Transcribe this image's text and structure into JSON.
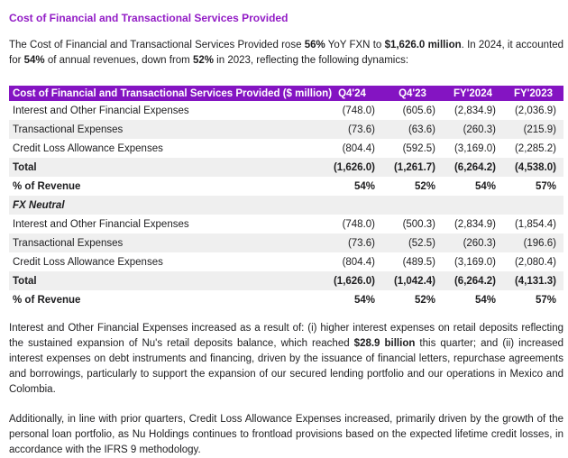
{
  "doc": {
    "title": "Cost of Financial and Transactional Services Provided",
    "intro": [
      {
        "text": "The Cost of Financial and Transactional Services Provided rose ",
        "bold": false
      },
      {
        "text": "56%",
        "bold": true
      },
      {
        "text": " YoY FXN to ",
        "bold": false
      },
      {
        "text": "$1,626.0 million",
        "bold": true
      },
      {
        "text": ". In 2024, it accounted for ",
        "bold": false
      },
      {
        "text": "54%",
        "bold": true
      },
      {
        "text": " of annual revenues, down from ",
        "bold": false
      },
      {
        "text": "52%",
        "bold": true
      },
      {
        "text": " in 2023, reflecting the following dynamics:",
        "bold": false
      }
    ]
  },
  "table": {
    "header": [
      "Cost of Financial and Transactional Services Provided ($ million)",
      "Q4'24",
      "Q4'23",
      "FY'2024",
      "FY'2023"
    ],
    "rows": [
      {
        "label": "Interest and Other Financial Expenses",
        "values": [
          "(748.0)",
          "(605.6)",
          "(2,834.9)",
          "(2,036.9)"
        ]
      },
      {
        "label": "Transactional Expenses",
        "values": [
          "(73.6)",
          "(63.6)",
          "(260.3)",
          "(215.9)"
        ]
      },
      {
        "label": "Credit Loss Allowance Expenses",
        "values": [
          "(804.4)",
          "(592.5)",
          "(3,169.0)",
          "(2,285.2)"
        ]
      },
      {
        "label": "Total",
        "values": [
          "(1,626.0)",
          "(1,261.7)",
          "(6,264.2)",
          "(4,538.0)"
        ]
      },
      {
        "label": "% of Revenue",
        "values": [
          "54%",
          "52%",
          "54%",
          "57%"
        ]
      },
      {
        "label": "FX Neutral",
        "values": []
      },
      {
        "label": "Interest and Other Financial Expenses",
        "values": [
          "(748.0)",
          "(500.3)",
          "(2,834.9)",
          "(1,854.4)"
        ]
      },
      {
        "label": "Transactional Expenses",
        "values": [
          "(73.6)",
          "(52.5)",
          "(260.3)",
          "(196.6)"
        ]
      },
      {
        "label": "Credit Loss Allowance Expenses",
        "values": [
          "(804.4)",
          "(489.5)",
          "(3,169.0)",
          "(2,080.4)"
        ]
      },
      {
        "label": "Total",
        "values": [
          "(1,626.0)",
          "(1,042.4)",
          "(6,264.2)",
          "(4,131.3)"
        ]
      },
      {
        "label": "% of Revenue",
        "values": [
          "54%",
          "52%",
          "54%",
          "57%"
        ]
      }
    ]
  },
  "paragraphs": [
    [
      {
        "text": "Interest and Other Financial Expenses increased as a result of: (i) higher interest expenses on retail deposits reflecting the sustained expansion of Nu's retail deposits balance, which reached ",
        "bold": false
      },
      {
        "text": "$28.9 billion",
        "bold": true
      },
      {
        "text": " this quarter; and (ii) increased interest expenses on debt instruments and financing, driven by the issuance of financial letters, repurchase agreements and borrowings, particularly to support the expansion of our secured lending portfolio and our operations in Mexico and Colombia.",
        "bold": false
      }
    ],
    [
      {
        "text": "Additionally, in line with prior quarters, Credit Loss Allowance Expenses increased, primarily driven by the growth of the personal loan portfolio, as Nu Holdings continues to frontload provisions based on the expected lifetime credit losses, in accordance with the IFRS 9 methodology.",
        "bold": false
      }
    ]
  ],
  "colors": {
    "accent_purple_header": "#8414C2",
    "title_purple": "#931DC6",
    "row_alt_gray": "#EFEFEF",
    "body_text": "#1d1d1f"
  }
}
